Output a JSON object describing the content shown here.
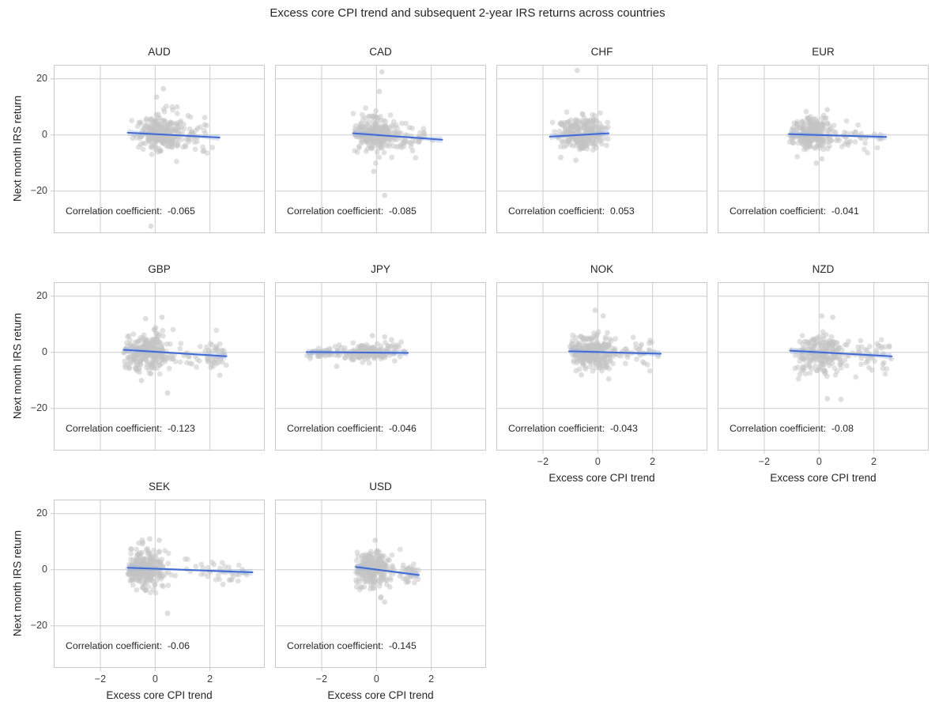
{
  "colors": {
    "background": "#ffffff",
    "grid": "#cdcdcd",
    "spine": "#c9c9c9",
    "scatter": "#c3c3c3",
    "trend_line": "#4169d2",
    "trend_band": "#93afe0",
    "title_text": "#262626",
    "tick_text": "#3d3d3d"
  },
  "chart_data": {
    "type": "scatter",
    "layout": "facet-grid-4-columns",
    "suptitle": "Excess core CPI trend and subsequent 2-year IRS returns across countries",
    "xlabel": "Excess core CPI trend",
    "ylabel": "Next month IRS return",
    "x_ticks": [
      -2,
      0,
      2
    ],
    "y_ticks": [
      20,
      0,
      -20
    ],
    "x_tick_labels": [
      "−2",
      "0",
      "2"
    ],
    "y_tick_labels": [
      "20",
      "0",
      "−20"
    ],
    "xlim": [
      -3.7,
      4.0
    ],
    "ylim": [
      -35,
      25
    ],
    "grid": true,
    "point_style": "light-gray translucent dots with blue linear regression fit and confidence band",
    "panels": [
      {
        "name": "AUD",
        "correlation_label": "Correlation coefficient:",
        "correlation_value": "-0.065",
        "correlation_display": "Correlation coefficient:  -0.065",
        "seed": 11,
        "clusters": [
          {
            "n": 260,
            "xm": 0.15,
            "xsd": 0.45,
            "xmin": -1.0,
            "xmax": 1.4,
            "ym": 0.5,
            "ysd": 3.2
          },
          {
            "n": 30,
            "xm": 1.5,
            "xsd": 0.45,
            "xmin": 1.0,
            "xmax": 2.35,
            "ym": -0.5,
            "ysd": 3.0
          }
        ],
        "outliers": [
          [
            -0.15,
            -32.5
          ],
          [
            0.3,
            16.5
          ],
          [
            0.05,
            13.5
          ],
          [
            0.8,
            10
          ]
        ],
        "trend_line": {
          "x": [
            -1.0,
            2.35
          ],
          "y": [
            0.8,
            -0.9
          ]
        }
      },
      {
        "name": "CAD",
        "correlation_label": "Correlation coefficient:",
        "correlation_value": "-0.085",
        "correlation_display": "Correlation coefficient:  -0.085",
        "seed": 22,
        "clusters": [
          {
            "n": 250,
            "xm": 0.0,
            "xsd": 0.4,
            "xmin": -0.85,
            "xmax": 1.0,
            "ym": 0.2,
            "ysd": 3.0
          },
          {
            "n": 40,
            "xm": 1.2,
            "xsd": 0.5,
            "xmin": 0.8,
            "xmax": 2.4,
            "ym": -1.0,
            "ysd": 2.6
          }
        ],
        "outliers": [
          [
            0.2,
            22.5
          ],
          [
            0.1,
            15.5
          ],
          [
            0.3,
            -21.5
          ],
          [
            -0.1,
            -13
          ]
        ],
        "trend_line": {
          "x": [
            -0.85,
            2.4
          ],
          "y": [
            0.6,
            -1.7
          ]
        }
      },
      {
        "name": "CHF",
        "correlation_label": "Correlation coefficient:",
        "correlation_value": "0.053",
        "correlation_display": "Correlation coefficient:  0.053",
        "seed": 33,
        "clusters": [
          {
            "n": 270,
            "xm": -0.55,
            "xsd": 0.42,
            "xmin": -1.8,
            "xmax": 0.4,
            "ym": 0.4,
            "ysd": 2.8
          }
        ],
        "outliers": [
          [
            -0.75,
            23
          ],
          [
            -1.35,
            -8
          ],
          [
            -0.8,
            -9
          ]
        ],
        "trend_line": {
          "x": [
            -1.75,
            0.4
          ],
          "y": [
            -0.6,
            0.6
          ]
        }
      },
      {
        "name": "EUR",
        "correlation_label": "Correlation coefficient:",
        "correlation_value": "-0.041",
        "correlation_display": "Correlation coefficient:  -0.041",
        "seed": 44,
        "clusters": [
          {
            "n": 270,
            "xm": -0.25,
            "xsd": 0.38,
            "xmin": -1.1,
            "xmax": 0.7,
            "ym": 0.1,
            "ysd": 2.6
          },
          {
            "n": 35,
            "xm": 1.2,
            "xsd": 0.55,
            "xmin": 0.6,
            "xmax": 2.45,
            "ym": -0.8,
            "ysd": 2.4
          }
        ],
        "outliers": [
          [
            -0.1,
            -10
          ],
          [
            0.1,
            -8.5
          ],
          [
            0.3,
            9
          ]
        ],
        "trend_line": {
          "x": [
            -1.1,
            2.45
          ],
          "y": [
            0.3,
            -0.7
          ]
        }
      },
      {
        "name": "GBP",
        "correlation_label": "Correlation coefficient:",
        "correlation_value": "-0.123",
        "correlation_display": "Correlation coefficient:  -0.123",
        "seed": 55,
        "clusters": [
          {
            "n": 270,
            "xm": -0.3,
            "xsd": 0.48,
            "xmin": -1.15,
            "xmax": 1.0,
            "ym": 0.3,
            "ysd": 3.2
          },
          {
            "n": 40,
            "xm": 2.2,
            "xsd": 0.22,
            "xmin": 1.7,
            "xmax": 2.6,
            "ym": -0.5,
            "ysd": 3.2
          },
          {
            "n": 15,
            "xm": 1.2,
            "xsd": 0.3,
            "xmin": 0.9,
            "xmax": 1.7,
            "ym": -1.5,
            "ysd": 2.5
          }
        ],
        "outliers": [
          [
            0.45,
            -14.5
          ],
          [
            -0.35,
            12
          ],
          [
            0.25,
            12.5
          ],
          [
            -0.5,
            -10
          ]
        ],
        "trend_line": {
          "x": [
            -1.15,
            2.6
          ],
          "y": [
            0.9,
            -1.4
          ]
        }
      },
      {
        "name": "JPY",
        "correlation_label": "Correlation coefficient:",
        "correlation_value": "-0.046",
        "correlation_display": "Correlation coefficient:  -0.046",
        "seed": 66,
        "clusters": [
          {
            "n": 180,
            "xm": -0.3,
            "xsd": 0.55,
            "xmin": -1.6,
            "xmax": 1.15,
            "ym": 0.0,
            "ysd": 1.4
          },
          {
            "n": 40,
            "xm": -2.0,
            "xsd": 0.35,
            "xmin": -2.55,
            "xmax": -1.4,
            "ym": 0.0,
            "ysd": 1.0
          }
        ],
        "outliers": [
          [
            -1.45,
            -5
          ],
          [
            0.3,
            5.5
          ],
          [
            -0.15,
            6
          ],
          [
            0.55,
            4.5
          ]
        ],
        "trend_line": {
          "x": [
            -2.55,
            1.15
          ],
          "y": [
            0.1,
            -0.2
          ]
        }
      },
      {
        "name": "NOK",
        "correlation_label": "Correlation coefficient:",
        "correlation_value": "-0.043",
        "correlation_display": "Correlation coefficient:  -0.043",
        "seed": 77,
        "clusters": [
          {
            "n": 280,
            "xm": -0.25,
            "xsd": 0.45,
            "xmin": -1.05,
            "xmax": 0.9,
            "ym": 0.0,
            "ysd": 3.0
          },
          {
            "n": 35,
            "xm": 1.3,
            "xsd": 0.5,
            "xmin": 0.8,
            "xmax": 2.3,
            "ym": 0.0,
            "ysd": 2.8
          }
        ],
        "outliers": [
          [
            -0.1,
            15
          ],
          [
            0.2,
            13
          ],
          [
            0.4,
            -9.5
          ],
          [
            -0.6,
            -8
          ]
        ],
        "trend_line": {
          "x": [
            -1.05,
            2.3
          ],
          "y": [
            0.4,
            -0.5
          ]
        }
      },
      {
        "name": "NZD",
        "correlation_label": "Correlation coefficient:",
        "correlation_value": "-0.08",
        "correlation_display": "Correlation coefficient:  -0.08",
        "seed": 88,
        "clusters": [
          {
            "n": 220,
            "xm": 0.05,
            "xsd": 0.5,
            "xmin": -1.05,
            "xmax": 1.3,
            "ym": 0.0,
            "ysd": 3.4
          },
          {
            "n": 40,
            "xm": 1.9,
            "xsd": 0.4,
            "xmin": 1.3,
            "xmax": 2.65,
            "ym": -0.6,
            "ysd": 2.8
          }
        ],
        "outliers": [
          [
            0.3,
            -16.5
          ],
          [
            0.8,
            -16.8
          ],
          [
            0.5,
            12.5
          ],
          [
            0.1,
            13
          ]
        ],
        "trend_line": {
          "x": [
            -1.05,
            2.65
          ],
          "y": [
            0.6,
            -1.4
          ]
        }
      },
      {
        "name": "SEK",
        "correlation_label": "Correlation coefficient:",
        "correlation_value": "-0.06",
        "correlation_display": "Correlation coefficient:  -0.06",
        "seed": 99,
        "clusters": [
          {
            "n": 300,
            "xm": -0.35,
            "xsd": 0.38,
            "xmin": -1.0,
            "xmax": 0.9,
            "ym": 0.3,
            "ysd": 3.2
          },
          {
            "n": 40,
            "xm": 2.3,
            "xsd": 0.75,
            "xmin": 1.0,
            "xmax": 3.55,
            "ym": -0.3,
            "ysd": 2.2
          }
        ],
        "outliers": [
          [
            0.45,
            -15.5
          ],
          [
            -0.2,
            11
          ],
          [
            0.15,
            10.5
          ]
        ],
        "trend_line": {
          "x": [
            -1.0,
            3.55
          ],
          "y": [
            0.7,
            -0.9
          ]
        }
      },
      {
        "name": "USD",
        "correlation_label": "Correlation coefficient:",
        "correlation_value": "-0.145",
        "correlation_display": "Correlation coefficient:  -0.145",
        "seed": 110,
        "clusters": [
          {
            "n": 270,
            "xm": -0.15,
            "xsd": 0.38,
            "xmin": -0.75,
            "xmax": 0.9,
            "ym": 0.0,
            "ysd": 3.0
          },
          {
            "n": 30,
            "xm": 1.1,
            "xsd": 0.25,
            "xmin": 0.8,
            "xmax": 1.55,
            "ym": -1.5,
            "ysd": 2.6
          }
        ],
        "outliers": [
          [
            -0.05,
            10.5
          ],
          [
            0.15,
            -10
          ],
          [
            0.3,
            -11.5
          ]
        ],
        "trend_line": {
          "x": [
            -0.75,
            1.55
          ],
          "y": [
            1.0,
            -1.9
          ]
        }
      }
    ]
  }
}
